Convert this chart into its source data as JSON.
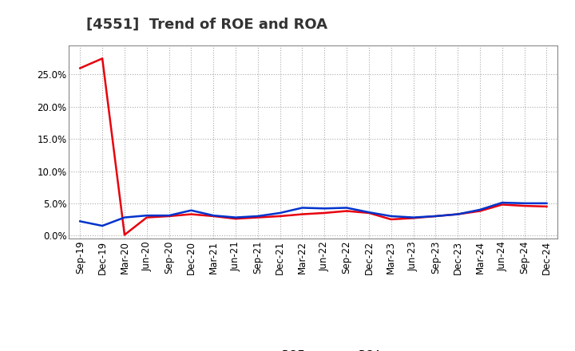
{
  "title": "[4551]  Trend of ROE and ROA",
  "x_labels": [
    "Sep-19",
    "Dec-19",
    "Mar-20",
    "Jun-20",
    "Sep-20",
    "Dec-20",
    "Mar-21",
    "Jun-21",
    "Sep-21",
    "Dec-21",
    "Mar-22",
    "Jun-22",
    "Sep-22",
    "Dec-22",
    "Mar-23",
    "Jun-23",
    "Sep-23",
    "Dec-23",
    "Mar-24",
    "Jun-24",
    "Sep-24",
    "Dec-24"
  ],
  "roe": [
    0.26,
    0.275,
    0.001,
    0.028,
    0.03,
    0.033,
    0.03,
    0.026,
    0.028,
    0.03,
    0.033,
    0.035,
    0.038,
    0.035,
    0.025,
    0.027,
    0.03,
    0.033,
    0.038,
    0.048,
    0.046,
    0.045
  ],
  "roa": [
    0.022,
    0.015,
    0.028,
    0.031,
    0.031,
    0.039,
    0.031,
    0.028,
    0.03,
    0.035,
    0.043,
    0.042,
    0.043,
    0.036,
    0.03,
    0.028,
    0.03,
    0.033,
    0.04,
    0.051,
    0.05,
    0.05
  ],
  "roe_color": "#e8000d",
  "roa_color": "#0033cc",
  "background_color": "#ffffff",
  "grid_color": "#aaaaaa",
  "ylim": [
    -0.005,
    0.295
  ],
  "yticks": [
    0.0,
    0.05,
    0.1,
    0.15,
    0.2,
    0.25
  ],
  "title_fontsize": 13,
  "legend_fontsize": 10,
  "axis_fontsize": 8.5
}
